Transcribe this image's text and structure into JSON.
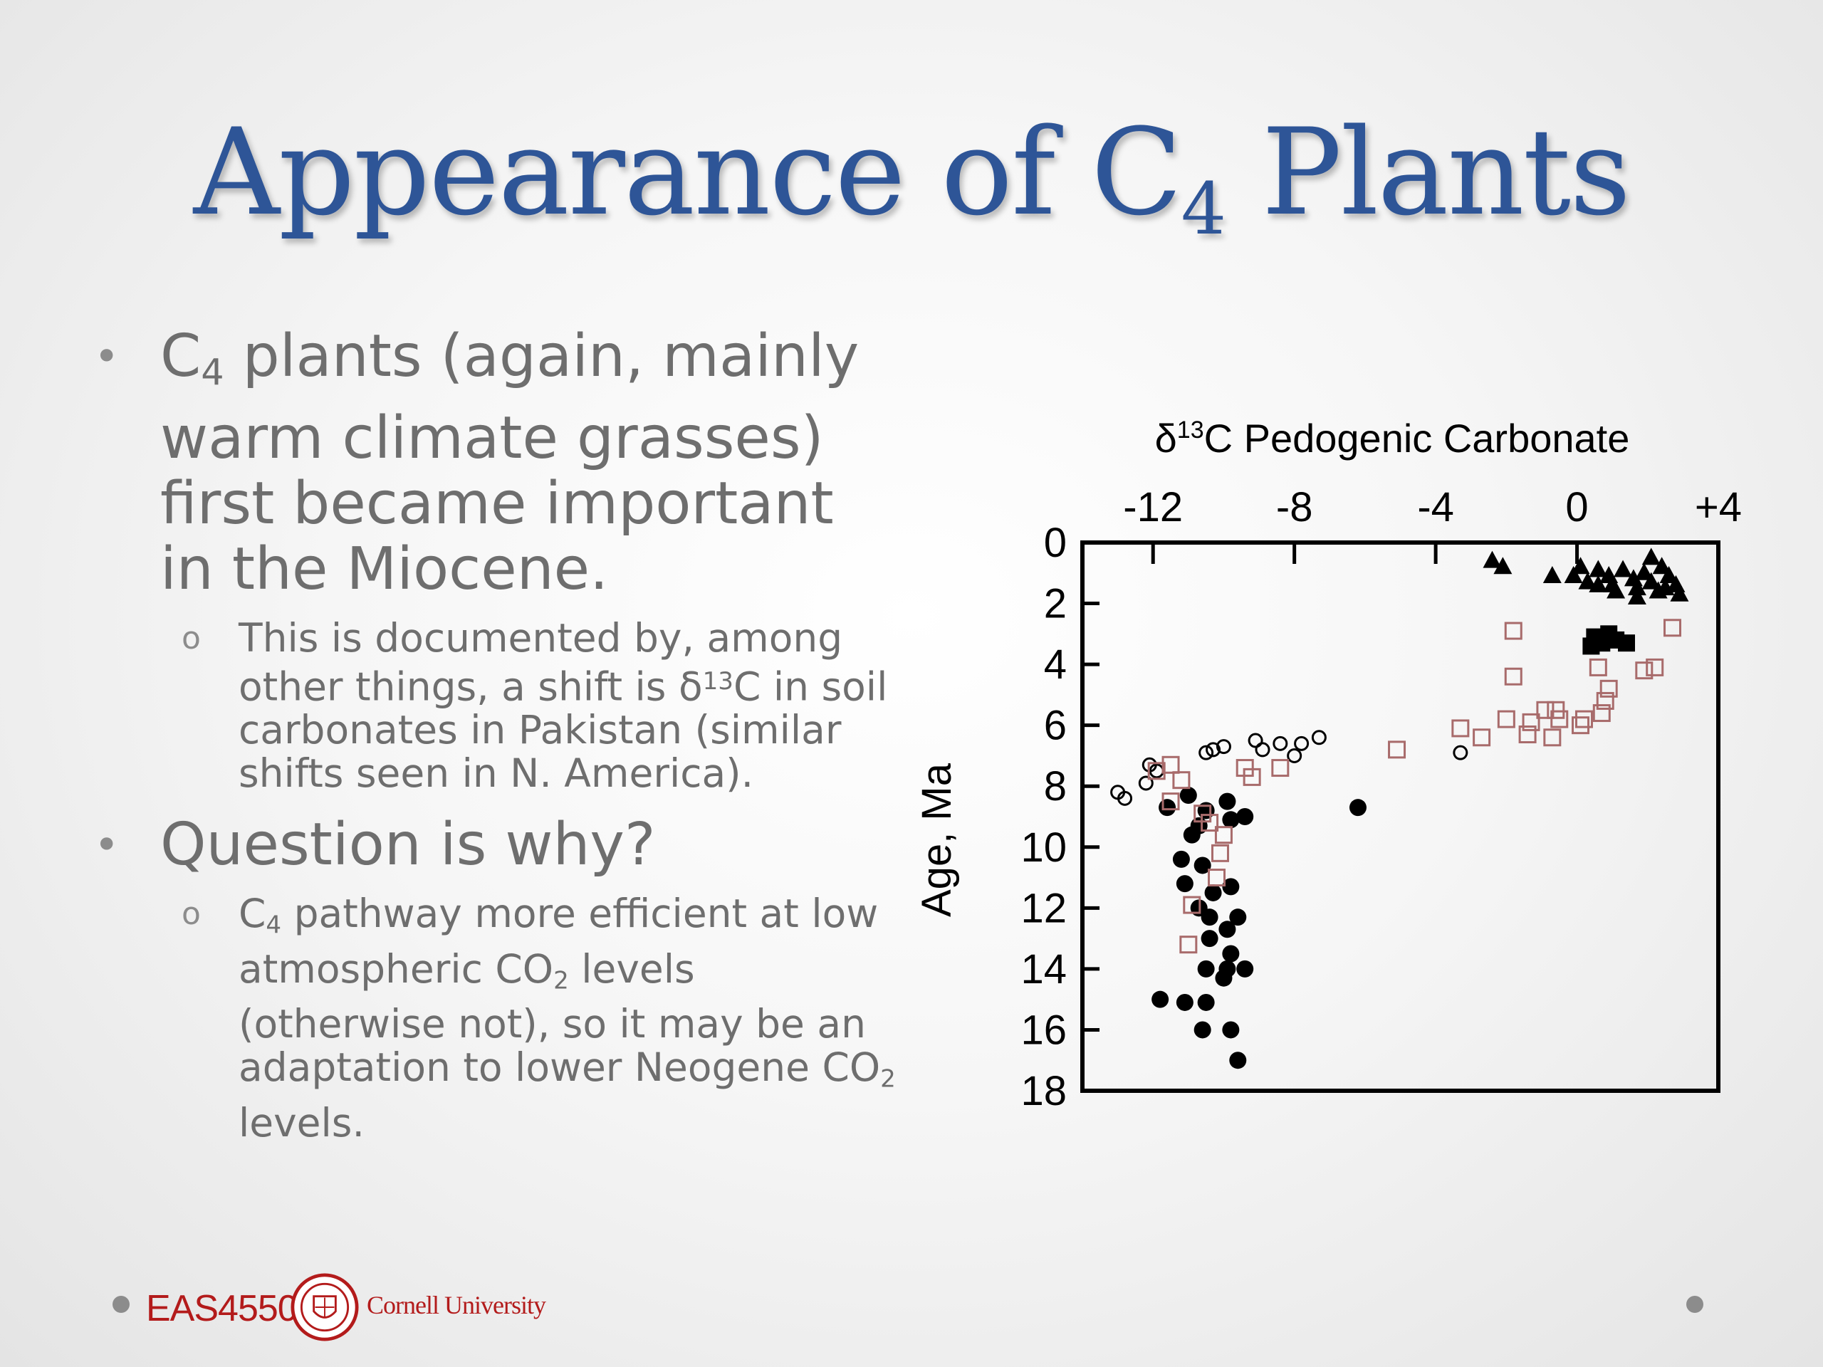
{
  "slide": {
    "title": {
      "pre": "Appearance of C",
      "sub": "4",
      "post": " Plants"
    },
    "bullets": [
      {
        "pre": "C",
        "sub": "4",
        "post": " plants (again, mainly warm climate grasses) first became important in the Miocene."
      },
      {
        "text": "Question is why?"
      }
    ],
    "sub_bullets": [
      {
        "pre": "This is documented by, among other things, a shift is δ",
        "sup": "13",
        "post": "C in soil carbonates in Pakistan (similar shifts seen in N. America)."
      },
      {
        "p1": "C",
        "s1": "4",
        "p2": " pathway more efficient at low atmospheric CO",
        "s2": "2",
        "p3": " levels (otherwise not), so it may be an adaptation to lower Neogene CO",
        "s3": "2",
        "p4": " levels."
      }
    ],
    "bullet_marker": "•",
    "sub_bullet_marker": "o"
  },
  "footer": {
    "course": "EAS4550",
    "university": "Cornell University"
  },
  "colors": {
    "title": "#2e5597",
    "body_text": "#6e6e6e",
    "brand_red": "#b31b1b",
    "square_series": "#a86b6b"
  },
  "chart_data": {
    "type": "scatter",
    "title_parts": {
      "pre": "δ",
      "sup": "13",
      "post": "C Pedogenic Carbonate"
    },
    "ylabel": "Age, Ma",
    "xlim": [
      -14,
      4
    ],
    "ylim": [
      0,
      18
    ],
    "x_axis_position": "top",
    "y_inverted": true,
    "grid": false,
    "x_ticks": [
      -12,
      -8,
      -4,
      0,
      4
    ],
    "x_tick_labels": [
      "-12",
      "-8",
      "-4",
      "0",
      "+4"
    ],
    "y_ticks": [
      0,
      2,
      4,
      6,
      8,
      10,
      12,
      14,
      16,
      18
    ],
    "y_tick_labels": [
      "0",
      "2",
      "4",
      "6",
      "8",
      "10",
      "12",
      "14",
      "16",
      "18"
    ],
    "series": [
      {
        "marker": "filled-circle",
        "color": "#000000",
        "points": [
          [
            -11.6,
            8.7
          ],
          [
            -11.0,
            8.3
          ],
          [
            -10.5,
            8.8
          ],
          [
            -9.9,
            8.5
          ],
          [
            -9.4,
            9.0
          ],
          [
            -9.8,
            9.1
          ],
          [
            -10.9,
            9.6
          ],
          [
            -10.7,
            9.3
          ],
          [
            -11.2,
            10.4
          ],
          [
            -10.6,
            10.6
          ],
          [
            -11.1,
            11.2
          ],
          [
            -10.3,
            11.5
          ],
          [
            -9.8,
            11.3
          ],
          [
            -10.4,
            12.3
          ],
          [
            -10.7,
            12.0
          ],
          [
            -9.9,
            12.7
          ],
          [
            -9.6,
            12.3
          ],
          [
            -10.4,
            13.0
          ],
          [
            -9.8,
            13.5
          ],
          [
            -10.5,
            14.0
          ],
          [
            -10.0,
            14.3
          ],
          [
            -9.4,
            14.0
          ],
          [
            -9.9,
            14.0
          ],
          [
            -11.8,
            15.0
          ],
          [
            -11.1,
            15.1
          ],
          [
            -10.5,
            15.1
          ],
          [
            -10.6,
            16.0
          ],
          [
            -9.8,
            16.0
          ],
          [
            -9.6,
            17.0
          ],
          [
            -6.2,
            8.7
          ]
        ]
      },
      {
        "marker": "open-circle",
        "color": "#000000",
        "points": [
          [
            -13.0,
            8.2
          ],
          [
            -12.8,
            8.4
          ],
          [
            -12.2,
            7.9
          ],
          [
            -12.1,
            7.3
          ],
          [
            -11.9,
            7.5
          ],
          [
            -10.5,
            6.9
          ],
          [
            -10.3,
            6.8
          ],
          [
            -10.0,
            6.7
          ],
          [
            -9.1,
            6.5
          ],
          [
            -8.9,
            6.8
          ],
          [
            -8.4,
            6.6
          ],
          [
            -8.0,
            7.0
          ],
          [
            -7.8,
            6.6
          ],
          [
            -7.3,
            6.4
          ],
          [
            -3.3,
            6.9
          ]
        ]
      },
      {
        "marker": "open-square",
        "color": "#a86b6b",
        "points": [
          [
            -11.9,
            7.5
          ],
          [
            -11.5,
            7.3
          ],
          [
            -11.2,
            7.8
          ],
          [
            -11.5,
            8.5
          ],
          [
            -10.6,
            8.9
          ],
          [
            -10.4,
            9.2
          ],
          [
            -10.0,
            9.6
          ],
          [
            -10.1,
            10.2
          ],
          [
            -10.2,
            11.0
          ],
          [
            -10.9,
            11.9
          ],
          [
            -11.0,
            13.2
          ],
          [
            -9.4,
            7.4
          ],
          [
            -9.2,
            7.7
          ],
          [
            -8.4,
            7.4
          ],
          [
            -5.1,
            6.8
          ],
          [
            -3.3,
            6.1
          ],
          [
            -2.7,
            6.4
          ],
          [
            -2.0,
            5.8
          ],
          [
            -1.8,
            2.9
          ],
          [
            -1.8,
            4.4
          ],
          [
            -1.4,
            6.3
          ],
          [
            -1.3,
            5.9
          ],
          [
            -0.9,
            5.5
          ],
          [
            -0.7,
            6.4
          ],
          [
            -0.5,
            5.8
          ],
          [
            -0.6,
            5.5
          ],
          [
            0.1,
            6.0
          ],
          [
            0.2,
            5.8
          ],
          [
            0.6,
            4.1
          ],
          [
            0.7,
            5.6
          ],
          [
            0.8,
            5.2
          ],
          [
            0.9,
            4.8
          ],
          [
            1.9,
            4.2
          ],
          [
            2.2,
            4.1
          ],
          [
            2.7,
            2.8
          ]
        ]
      },
      {
        "marker": "filled-triangle",
        "color": "#000000",
        "points": [
          [
            -2.4,
            0.6
          ],
          [
            -2.1,
            0.8
          ],
          [
            -0.7,
            1.1
          ],
          [
            -0.1,
            1.1
          ],
          [
            0.1,
            0.8
          ],
          [
            0.3,
            1.3
          ],
          [
            0.6,
            0.9
          ],
          [
            0.9,
            1.1
          ],
          [
            1.0,
            1.4
          ],
          [
            1.3,
            0.9
          ],
          [
            1.6,
            1.2
          ],
          [
            1.9,
            1.0
          ],
          [
            2.1,
            1.3
          ],
          [
            2.1,
            0.5
          ],
          [
            2.4,
            0.8
          ],
          [
            2.6,
            1.1
          ],
          [
            2.8,
            1.4
          ],
          [
            2.3,
            1.6
          ],
          [
            1.7,
            1.5
          ],
          [
            1.1,
            1.6
          ],
          [
            0.6,
            1.4
          ],
          [
            2.9,
            1.7
          ],
          [
            1.7,
            1.8
          ],
          [
            2.5,
            1.5
          ]
        ]
      },
      {
        "marker": "filled-square",
        "color": "#000000",
        "points": [
          [
            0.5,
            3.1
          ],
          [
            0.7,
            3.3
          ],
          [
            0.9,
            3.0
          ],
          [
            1.1,
            3.2
          ],
          [
            1.4,
            3.3
          ],
          [
            0.4,
            3.4
          ]
        ]
      }
    ]
  }
}
